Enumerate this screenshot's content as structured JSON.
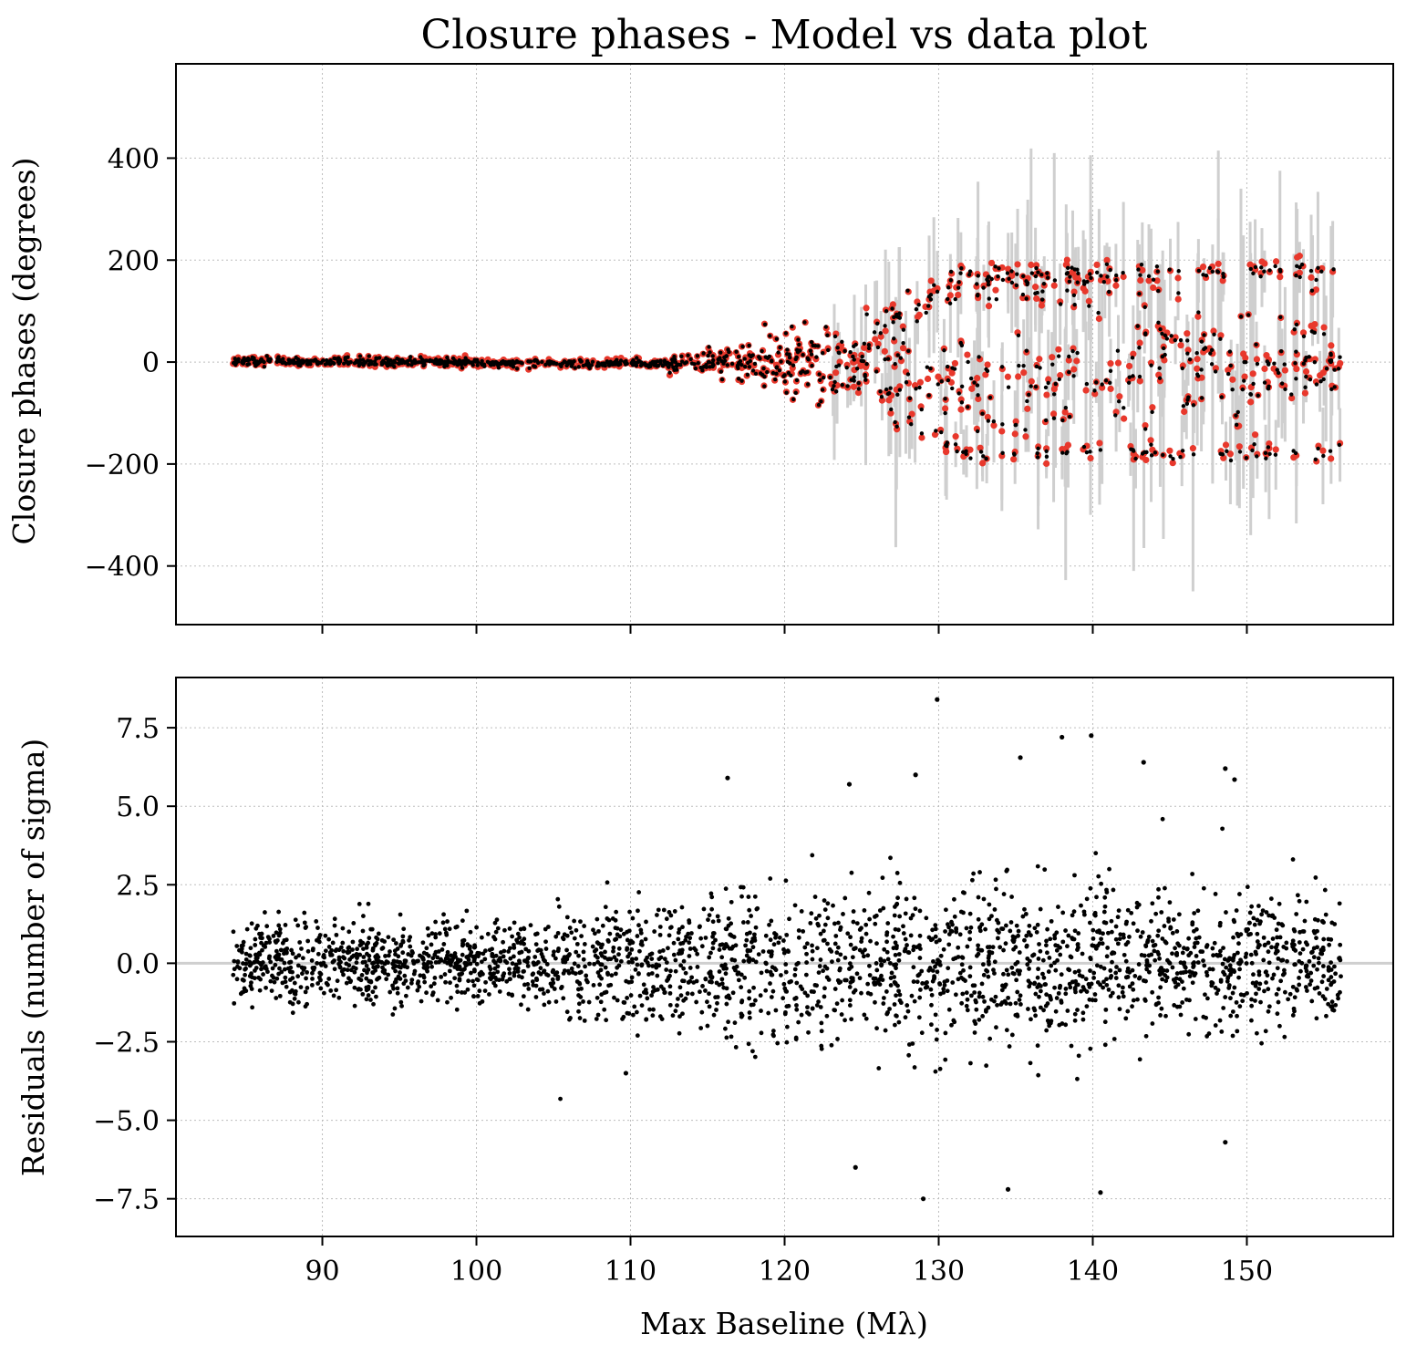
{
  "figure": {
    "title": "Closure phases - Model vs data plot"
  },
  "chart_data": [
    {
      "id": "top",
      "type": "scatter",
      "ylabel": "Closure phases (degrees)",
      "xlim": [
        80.5,
        159.5
      ],
      "ylim": [
        -515,
        585
      ],
      "xticks": [
        90,
        100,
        110,
        120,
        130,
        140,
        150
      ],
      "yticks": [
        -400,
        -200,
        0,
        200,
        400
      ],
      "ytick_labels": [
        "−400",
        "−200",
        "0",
        "200",
        "400"
      ],
      "grid": true,
      "colors": {
        "data": "#000000",
        "model": "#e8382c",
        "errorbar": "#cfcfcf"
      },
      "series": [
        {
          "role": "errorbar"
        },
        {
          "role": "model"
        },
        {
          "role": "data"
        }
      ],
      "x_range_of_points": [
        84.2,
        156.1
      ],
      "phase_levels": [
        178,
        160,
        130,
        60,
        0,
        -60,
        -120,
        -178
      ]
    },
    {
      "id": "bottom",
      "type": "scatter",
      "ylabel": "Residuals (number of sigma)",
      "xlabel": "Max Baseline (Mλ)",
      "xlim": [
        80.5,
        159.5
      ],
      "ylim": [
        -8.7,
        9.1
      ],
      "xticks": [
        90,
        100,
        110,
        120,
        130,
        140,
        150
      ],
      "xtick_labels": [
        "90",
        "100",
        "110",
        "120",
        "130",
        "140",
        "150"
      ],
      "yticks": [
        -7.5,
        -5.0,
        -2.5,
        0.0,
        2.5,
        5.0,
        7.5
      ],
      "ytick_labels": [
        "−7.5",
        "−5.0",
        "−2.5",
        "0.0",
        "2.5",
        "5.0",
        "7.5"
      ],
      "grid": true,
      "reference_line_y": 0,
      "colors": {
        "data": "#000000",
        "refline": "#cfcfcf"
      },
      "outliers": [
        {
          "x": 129.9,
          "y": 8.4
        },
        {
          "x": 138.0,
          "y": 7.2
        },
        {
          "x": 139.9,
          "y": 7.25
        },
        {
          "x": 135.3,
          "y": 6.55
        },
        {
          "x": 143.3,
          "y": 6.4
        },
        {
          "x": 148.6,
          "y": 6.2
        },
        {
          "x": 128.5,
          "y": 6.0
        },
        {
          "x": 116.3,
          "y": 5.9
        },
        {
          "x": 149.2,
          "y": 5.85
        },
        {
          "x": 124.2,
          "y": 5.7
        },
        {
          "x": 129.0,
          "y": -7.5
        },
        {
          "x": 134.5,
          "y": -7.2
        },
        {
          "x": 140.5,
          "y": -7.3
        },
        {
          "x": 124.6,
          "y": -6.5
        },
        {
          "x": 148.6,
          "y": -5.7
        },
        {
          "x": 109.7,
          "y": -3.5
        }
      ]
    }
  ]
}
